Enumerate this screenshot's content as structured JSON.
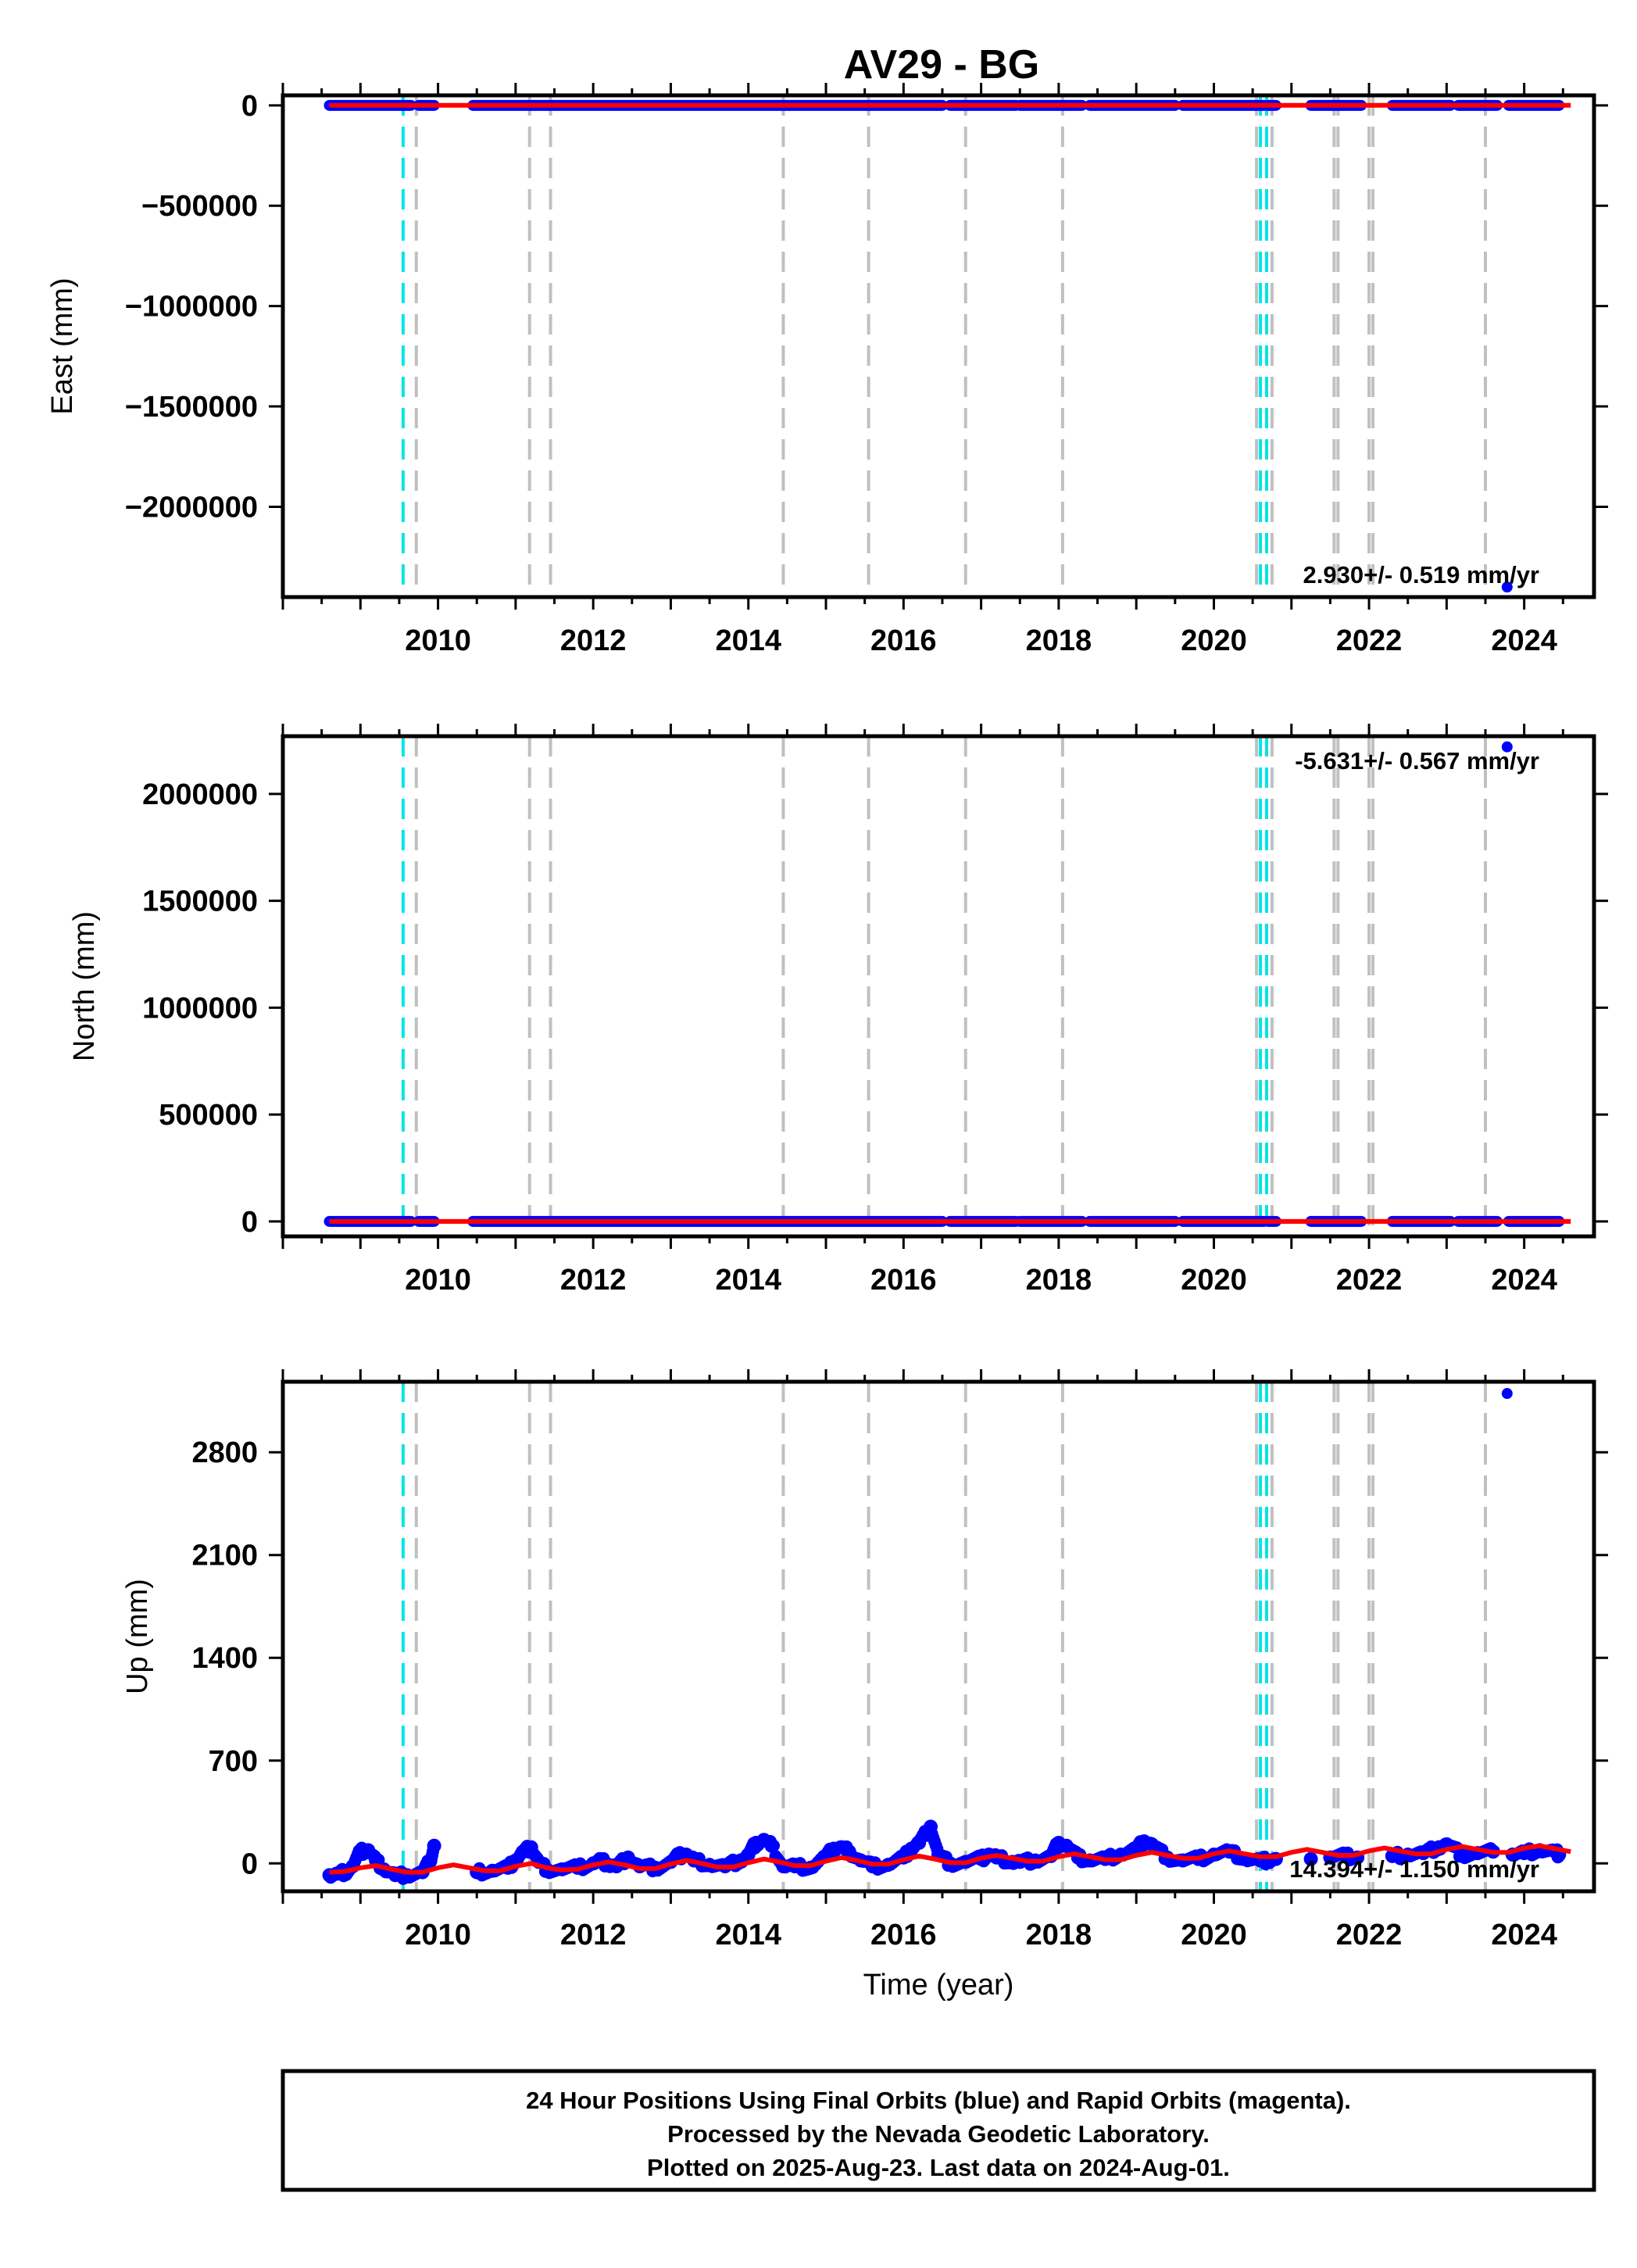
{
  "title": "AV29 - BG",
  "colors": {
    "final_points": "#0000ff",
    "rapid_points": "#ff00ff",
    "model": "#ff0000",
    "step_cyan": "#00e5e5",
    "step_gray": "#c0c0c0"
  },
  "caption": [
    "24 Hour Positions Using Final Orbits (blue) and Rapid Orbits (magenta).",
    "Processed by the Nevada Geodetic Laboratory.",
    "Plotted on 2025-Aug-23. Last data on 2024-Aug-01."
  ],
  "chart_data": [
    {
      "type": "scatter",
      "ylabel": "East (mm)",
      "xlabel": "",
      "xlim": [
        2008.0,
        2024.9
      ],
      "ylim": [
        -2450000,
        50000
      ],
      "xticks": [
        "2010",
        "2012",
        "2014",
        "2016",
        "2018",
        "2020",
        "2022",
        "2024"
      ],
      "yticks": [
        "0",
        "−500000",
        "−1000000",
        "−1500000",
        "−2000000"
      ],
      "ytick_values": [
        0,
        -500000,
        -1000000,
        -1500000,
        -2000000
      ],
      "rate_label": "2.930+/- 0.519 mm/yr",
      "data_segments": [
        [
          2008.6,
          2009.65
        ],
        [
          2009.75,
          2009.95
        ],
        [
          2010.45,
          2016.5
        ],
        [
          2016.6,
          2017.45
        ],
        [
          2017.5,
          2018.3
        ],
        [
          2018.4,
          2019.5
        ],
        [
          2019.6,
          2020.65
        ],
        [
          2020.7,
          2020.8
        ],
        [
          2021.25,
          2021.9
        ],
        [
          2022.3,
          2023.05
        ],
        [
          2023.15,
          2023.65
        ],
        [
          2023.8,
          2024.45
        ]
      ],
      "baseline_value": 0,
      "outliers": [
        {
          "x": 2023.78,
          "y": -2400000
        }
      ],
      "model_line": [
        [
          2008.6,
          0
        ],
        [
          2024.6,
          0
        ]
      ]
    },
    {
      "type": "scatter",
      "ylabel": "North (mm)",
      "xlabel": "",
      "xlim": [
        2008.0,
        2024.9
      ],
      "ylim": [
        -70000,
        2270000
      ],
      "xticks": [
        "2010",
        "2012",
        "2014",
        "2016",
        "2018",
        "2020",
        "2022",
        "2024"
      ],
      "yticks": [
        "0",
        "500000",
        "1000000",
        "1500000",
        "2000000"
      ],
      "ytick_values": [
        0,
        500000,
        1000000,
        1500000,
        2000000
      ],
      "rate_label": "-5.631+/- 0.567 mm/yr",
      "data_segments": [
        [
          2008.6,
          2009.65
        ],
        [
          2009.75,
          2009.95
        ],
        [
          2010.45,
          2016.5
        ],
        [
          2016.6,
          2017.45
        ],
        [
          2017.5,
          2018.3
        ],
        [
          2018.4,
          2019.5
        ],
        [
          2019.6,
          2020.65
        ],
        [
          2020.7,
          2020.8
        ],
        [
          2021.25,
          2021.9
        ],
        [
          2022.3,
          2023.05
        ],
        [
          2023.15,
          2023.65
        ],
        [
          2023.8,
          2024.45
        ]
      ],
      "baseline_value": 0,
      "outliers": [
        {
          "x": 2023.78,
          "y": 2220000
        }
      ],
      "model_line": [
        [
          2008.6,
          0
        ],
        [
          2024.6,
          0
        ]
      ]
    },
    {
      "type": "scatter",
      "ylabel": "Up (mm)",
      "xlabel": "Time (year)",
      "xlim": [
        2008.0,
        2024.9
      ],
      "ylim": [
        -190,
        3280
      ],
      "xticks": [
        "2010",
        "2012",
        "2014",
        "2016",
        "2018",
        "2020",
        "2022",
        "2024"
      ],
      "yticks": [
        "0",
        "700",
        "1400",
        "2100",
        "2800"
      ],
      "ytick_values": [
        0,
        700,
        1400,
        2100,
        2800
      ],
      "rate_label": "14.394+/- 1.150 mm/yr",
      "outliers": [
        {
          "x": 2023.78,
          "y": 3200
        }
      ],
      "data_points": [
        [
          2008.6,
          -80
        ],
        [
          2008.7,
          -70
        ],
        [
          2008.8,
          -60
        ],
        [
          2008.9,
          -20
        ],
        [
          2009.0,
          80
        ],
        [
          2009.1,
          90
        ],
        [
          2009.2,
          20
        ],
        [
          2009.3,
          -40
        ],
        [
          2009.45,
          -80
        ],
        [
          2009.6,
          -80
        ],
        [
          2009.8,
          -60
        ],
        [
          2009.9,
          20
        ],
        [
          2009.95,
          120
        ],
        [
          2010.5,
          -60
        ],
        [
          2010.7,
          -50
        ],
        [
          2010.9,
          -30
        ],
        [
          2011.0,
          20
        ],
        [
          2011.1,
          80
        ],
        [
          2011.2,
          110
        ],
        [
          2011.3,
          10
        ],
        [
          2011.4,
          -40
        ],
        [
          2011.6,
          -40
        ],
        [
          2011.8,
          -30
        ],
        [
          2012.0,
          0
        ],
        [
          2012.1,
          20
        ],
        [
          2012.2,
          -10
        ],
        [
          2012.3,
          -20
        ],
        [
          2012.45,
          40
        ],
        [
          2012.6,
          -20
        ],
        [
          2012.8,
          -30
        ],
        [
          2013.0,
          10
        ],
        [
          2013.1,
          50
        ],
        [
          2013.2,
          60
        ],
        [
          2013.3,
          20
        ],
        [
          2013.5,
          -10
        ],
        [
          2013.7,
          -20
        ],
        [
          2013.9,
          20
        ],
        [
          2014.0,
          60
        ],
        [
          2014.1,
          140
        ],
        [
          2014.2,
          160
        ],
        [
          2014.3,
          120
        ],
        [
          2014.45,
          -20
        ],
        [
          2014.6,
          -20
        ],
        [
          2014.8,
          -30
        ],
        [
          2015.0,
          50
        ],
        [
          2015.1,
          100
        ],
        [
          2015.2,
          110
        ],
        [
          2015.3,
          80
        ],
        [
          2015.45,
          20
        ],
        [
          2015.6,
          -20
        ],
        [
          2015.8,
          -10
        ],
        [
          2016.0,
          40
        ],
        [
          2016.1,
          100
        ],
        [
          2016.2,
          140
        ],
        [
          2016.35,
          250
        ],
        [
          2016.45,
          60
        ],
        [
          2016.6,
          0
        ],
        [
          2016.8,
          10
        ],
        [
          2017.0,
          30
        ],
        [
          2017.1,
          60
        ],
        [
          2017.2,
          40
        ],
        [
          2017.4,
          10
        ],
        [
          2017.5,
          10
        ],
        [
          2017.7,
          20
        ],
        [
          2017.9,
          50
        ],
        [
          2018.0,
          140
        ],
        [
          2018.1,
          120
        ],
        [
          2018.25,
          40
        ],
        [
          2018.4,
          20
        ],
        [
          2018.6,
          30
        ],
        [
          2018.8,
          60
        ],
        [
          2019.0,
          100
        ],
        [
          2019.1,
          150
        ],
        [
          2019.2,
          130
        ],
        [
          2019.4,
          40
        ],
        [
          2019.6,
          20
        ],
        [
          2019.8,
          30
        ],
        [
          2020.0,
          60
        ],
        [
          2020.2,
          80
        ],
        [
          2020.4,
          30
        ],
        [
          2020.6,
          20
        ],
        [
          2020.7,
          20
        ],
        [
          2020.8,
          30
        ],
        [
          2021.25,
          30
        ],
        [
          2021.5,
          40
        ],
        [
          2021.7,
          50
        ],
        [
          2021.85,
          40
        ],
        [
          2022.3,
          50
        ],
        [
          2022.5,
          60
        ],
        [
          2022.7,
          70
        ],
        [
          2022.9,
          110
        ],
        [
          2023.0,
          130
        ],
        [
          2023.2,
          60
        ],
        [
          2023.4,
          70
        ],
        [
          2023.6,
          80
        ],
        [
          2023.85,
          60
        ],
        [
          2024.0,
          70
        ],
        [
          2024.2,
          90
        ],
        [
          2024.4,
          80
        ],
        [
          2024.45,
          60
        ]
      ],
      "model_line": [
        [
          2008.6,
          -60
        ],
        [
          2008.8,
          -55
        ],
        [
          2009.0,
          -30
        ],
        [
          2009.2,
          -15
        ],
        [
          2009.4,
          -40
        ],
        [
          2009.6,
          -60
        ],
        [
          2009.8,
          -60
        ],
        [
          2010.0,
          -30
        ],
        [
          2010.2,
          -10
        ],
        [
          2010.4,
          -30
        ],
        [
          2010.6,
          -50
        ],
        [
          2010.8,
          -50
        ],
        [
          2011.0,
          -20
        ],
        [
          2011.2,
          0
        ],
        [
          2011.4,
          -30
        ],
        [
          2011.6,
          -45
        ],
        [
          2011.8,
          -40
        ],
        [
          2012.0,
          -10
        ],
        [
          2012.2,
          10
        ],
        [
          2012.4,
          -10
        ],
        [
          2012.6,
          -35
        ],
        [
          2012.8,
          -35
        ],
        [
          2013.0,
          -5
        ],
        [
          2013.2,
          20
        ],
        [
          2013.4,
          0
        ],
        [
          2013.6,
          -25
        ],
        [
          2013.8,
          -25
        ],
        [
          2014.0,
          5
        ],
        [
          2014.2,
          30
        ],
        [
          2014.4,
          10
        ],
        [
          2014.6,
          -15
        ],
        [
          2014.8,
          -15
        ],
        [
          2015.0,
          15
        ],
        [
          2015.2,
          40
        ],
        [
          2015.4,
          20
        ],
        [
          2015.6,
          -5
        ],
        [
          2015.8,
          -5
        ],
        [
          2016.0,
          25
        ],
        [
          2016.2,
          50
        ],
        [
          2016.4,
          30
        ],
        [
          2016.6,
          5
        ],
        [
          2016.8,
          5
        ],
        [
          2017.0,
          35
        ],
        [
          2017.2,
          55
        ],
        [
          2017.4,
          35
        ],
        [
          2017.6,
          15
        ],
        [
          2017.8,
          15
        ],
        [
          2018.0,
          45
        ],
        [
          2018.2,
          65
        ],
        [
          2018.4,
          45
        ],
        [
          2018.6,
          25
        ],
        [
          2018.8,
          25
        ],
        [
          2019.0,
          55
        ],
        [
          2019.2,
          75
        ],
        [
          2019.4,
          55
        ],
        [
          2019.6,
          35
        ],
        [
          2019.8,
          35
        ],
        [
          2020.0,
          65
        ],
        [
          2020.2,
          85
        ],
        [
          2020.4,
          65
        ],
        [
          2020.6,
          45
        ],
        [
          2020.8,
          45
        ],
        [
          2021.0,
          75
        ],
        [
          2021.2,
          95
        ],
        [
          2021.4,
          75
        ],
        [
          2021.6,
          55
        ],
        [
          2021.8,
          55
        ],
        [
          2022.0,
          85
        ],
        [
          2022.2,
          105
        ],
        [
          2022.4,
          85
        ],
        [
          2022.6,
          65
        ],
        [
          2022.8,
          65
        ],
        [
          2023.0,
          95
        ],
        [
          2023.2,
          115
        ],
        [
          2023.4,
          95
        ],
        [
          2023.6,
          75
        ],
        [
          2023.8,
          75
        ],
        [
          2024.0,
          105
        ],
        [
          2024.2,
          120
        ],
        [
          2024.4,
          100
        ],
        [
          2024.6,
          80
        ]
      ]
    }
  ],
  "steps": {
    "cyan": [
      2009.55,
      2020.6,
      2020.68
    ],
    "gray": [
      2009.72,
      2011.18,
      2011.45,
      2014.45,
      2015.55,
      2016.8,
      2018.05,
      2020.55,
      2020.75,
      2021.55,
      2021.6,
      2022.0,
      2022.05,
      2023.5
    ]
  }
}
